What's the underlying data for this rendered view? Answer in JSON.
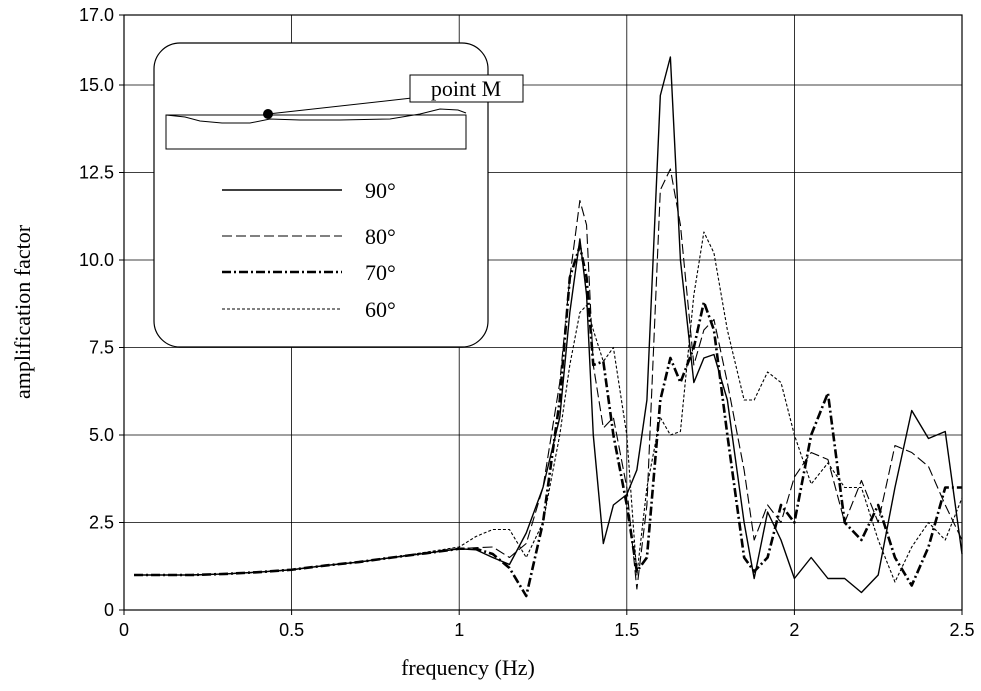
{
  "chart_data": {
    "type": "line",
    "xlabel": "frequency (Hz)",
    "ylabel": "amplification factor",
    "inset_label": "point M",
    "x": [
      0.03,
      0.1,
      0.2,
      0.3,
      0.4,
      0.5,
      0.6,
      0.7,
      0.8,
      0.9,
      1.0,
      1.05,
      1.1,
      1.15,
      1.2,
      1.25,
      1.3,
      1.33,
      1.36,
      1.38,
      1.4,
      1.43,
      1.46,
      1.5,
      1.53,
      1.56,
      1.6,
      1.63,
      1.66,
      1.7,
      1.73,
      1.76,
      1.8,
      1.85,
      1.88,
      1.92,
      1.96,
      2.0,
      2.05,
      2.1,
      2.15,
      2.2,
      2.25,
      2.3,
      2.35,
      2.4,
      2.45,
      2.5
    ],
    "series": [
      {
        "name": "90°",
        "color": "#000000",
        "linestyle": "solid",
        "values": [
          1,
          1,
          1,
          1.03,
          1.08,
          1.15,
          1.27,
          1.37,
          1.5,
          1.62,
          1.75,
          1.72,
          1.5,
          1.3,
          2.2,
          3.5,
          5.5,
          8.5,
          10.6,
          9,
          5,
          1.9,
          3,
          3.3,
          4,
          6,
          14.7,
          15.8,
          10,
          6.5,
          7.2,
          7.3,
          6,
          2.5,
          0.9,
          2.8,
          2,
          0.9,
          1.5,
          0.9,
          0.9,
          0.5,
          1,
          3.5,
          5.7,
          4.9,
          5.1,
          1.6
        ]
      },
      {
        "name": "80°",
        "color": "#000000",
        "linestyle": "dashed",
        "values": [
          1,
          1,
          1,
          1.03,
          1.08,
          1.15,
          1.27,
          1.37,
          1.5,
          1.62,
          1.75,
          1.78,
          1.8,
          1.5,
          1.9,
          3.5,
          6.5,
          9.5,
          11.7,
          11,
          7,
          5.2,
          5.5,
          3.5,
          0.6,
          3,
          12,
          12.6,
          11,
          7,
          8,
          8.3,
          6.5,
          4,
          2,
          3,
          2.5,
          3.8,
          4.5,
          4.3,
          2.5,
          3.7,
          2.5,
          4.7,
          4.5,
          4.1,
          3,
          2
        ]
      },
      {
        "name": "70°",
        "color": "#000000",
        "linestyle": "dashdot",
        "values": [
          1,
          1,
          1,
          1.03,
          1.08,
          1.15,
          1.27,
          1.37,
          1.5,
          1.62,
          1.75,
          1.75,
          1.6,
          1.2,
          0.4,
          2.5,
          6,
          9.5,
          10.4,
          9.5,
          7,
          7.1,
          5,
          3,
          1.1,
          1.5,
          6,
          7.2,
          6.5,
          7.5,
          8.8,
          8,
          5,
          1.5,
          1.1,
          1.5,
          3,
          2.5,
          5,
          6.2,
          2.5,
          2,
          3,
          1.5,
          0.7,
          1.8,
          3.5,
          3.5
        ]
      },
      {
        "name": "60°",
        "color": "#000000",
        "linestyle": "dotted",
        "values": [
          1,
          1,
          1,
          1.03,
          1.08,
          1.15,
          1.27,
          1.37,
          1.5,
          1.65,
          1.8,
          2.1,
          2.3,
          2.3,
          1.5,
          2.5,
          5,
          7,
          8.5,
          8.7,
          8,
          7.1,
          7.5,
          5,
          1,
          3.5,
          5.5,
          5,
          5.1,
          9,
          10.8,
          10.2,
          8,
          6,
          6,
          6.8,
          6.5,
          5,
          3.6,
          4.2,
          3.5,
          3.5,
          2,
          0.8,
          1.8,
          2.5,
          2,
          3.2
        ]
      }
    ],
    "xlim": [
      0,
      2.5
    ],
    "xticks": [
      0,
      0.5,
      1,
      1.5,
      2,
      2.5
    ],
    "ylim": [
      0,
      17
    ],
    "yticks": [
      0,
      2.5,
      {
        "value": 5,
        "label": "5.0"
      },
      7.5,
      {
        "value": 10,
        "label": "10.0"
      },
      12.5,
      {
        "value": 15,
        "label": "15.0"
      },
      {
        "value": 17,
        "label": "17.0"
      }
    ],
    "grid": true
  }
}
